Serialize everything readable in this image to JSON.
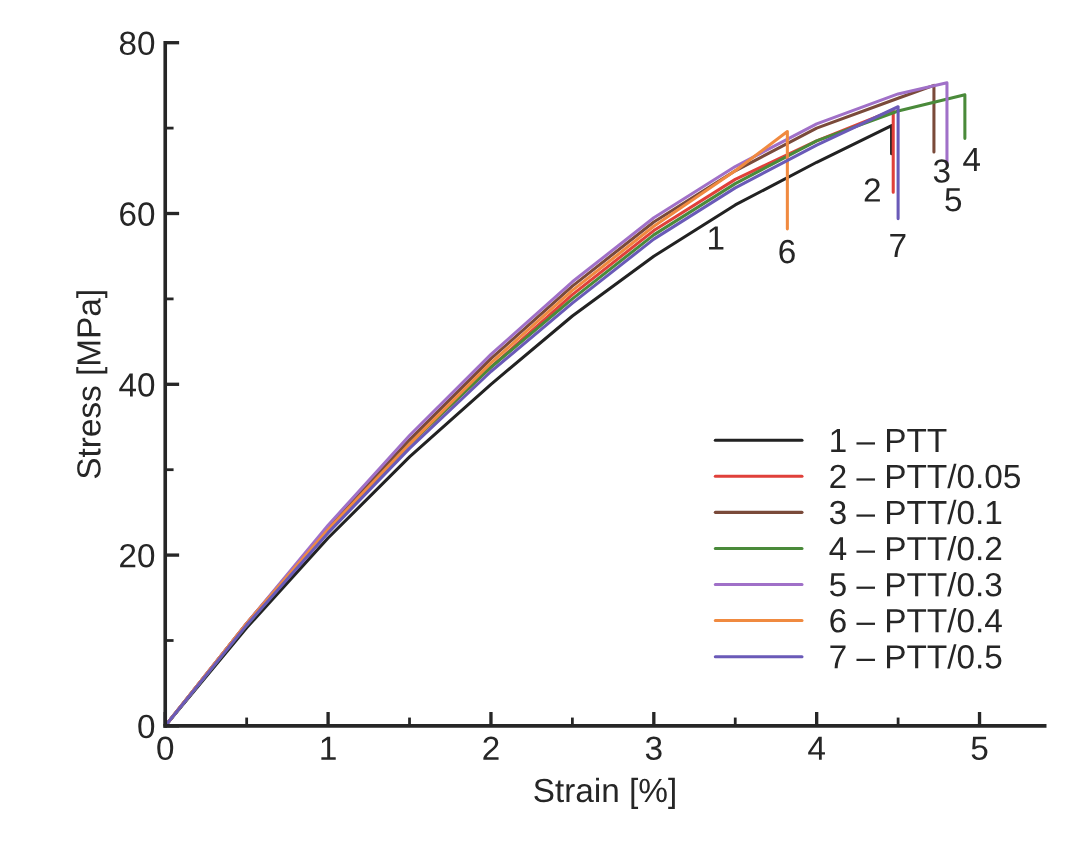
{
  "chart_data": {
    "type": "line",
    "xlabel": "Strain [%]",
    "ylabel": "Stress [MPa]",
    "xlim": [
      0,
      5.4
    ],
    "ylim": [
      0,
      80
    ],
    "xticks": [
      0,
      1,
      2,
      3,
      4,
      5
    ],
    "yticks": [
      0,
      20,
      40,
      60,
      80
    ],
    "grid": false,
    "legend": "bottom right",
    "marker": "none",
    "line_style": "solid",
    "series": [
      {
        "name": "1 – PTT",
        "color": "#222222",
        "x": [
          0,
          0.5,
          1,
          1.5,
          2,
          2.5,
          3,
          3.5,
          4,
          4.46,
          4.46
        ],
        "values": [
          0,
          11.5,
          22,
          31.5,
          40,
          48,
          55,
          61,
          66,
          70.3,
          67
        ]
      },
      {
        "name": "2 – PTT/0.05",
        "color": "#e0403a",
        "x": [
          0,
          0.5,
          1,
          1.5,
          2,
          2.5,
          3,
          3.5,
          4,
          4.47,
          4.47
        ],
        "values": [
          0,
          12,
          23,
          33,
          42,
          50.5,
          58,
          64,
          68.5,
          72.1,
          62.5
        ]
      },
      {
        "name": "3 – PTT/0.1",
        "color": "#7a4a3a",
        "x": [
          0,
          0.5,
          1,
          1.5,
          2,
          2.5,
          3,
          3.5,
          4,
          4.5,
          4.72,
          4.72
        ],
        "values": [
          0,
          12,
          23.2,
          33.5,
          43,
          51.5,
          59,
          65,
          70,
          73.5,
          75,
          67.2
        ]
      },
      {
        "name": "4 – PTT/0.2",
        "color": "#4a8a3a",
        "x": [
          0,
          0.5,
          1,
          1.5,
          2,
          2.5,
          3,
          3.5,
          4,
          4.5,
          4.91,
          4.91
        ],
        "values": [
          0,
          11.8,
          22.8,
          33,
          42,
          50,
          57.5,
          63.5,
          68.5,
          72,
          73.9,
          68.8
        ]
      },
      {
        "name": "5 – PTT/0.3",
        "color": "#a070c8",
        "x": [
          0,
          0.5,
          1,
          1.5,
          2,
          2.5,
          3,
          3.5,
          4,
          4.5,
          4.8,
          4.8
        ],
        "values": [
          0,
          12,
          23.5,
          34,
          43.5,
          52,
          59.5,
          65.5,
          70.5,
          74,
          75.3,
          65.7
        ]
      },
      {
        "name": "6 – PTT/0.4",
        "color": "#f08a40",
        "x": [
          0,
          0.5,
          1,
          1.5,
          2,
          2.5,
          3,
          3.5,
          3.82,
          3.82
        ],
        "values": [
          0,
          12,
          23,
          33,
          42.5,
          51,
          58.5,
          65,
          69.6,
          58.2
        ]
      },
      {
        "name": "7 – PTT/0.5",
        "color": "#6a5ab8",
        "x": [
          0,
          0.5,
          1,
          1.5,
          2,
          2.5,
          3,
          3.5,
          4,
          4.5,
          4.5
        ],
        "values": [
          0,
          11.8,
          22.6,
          32.5,
          41.5,
          49.5,
          57,
          63,
          68,
          72.5,
          59.4
        ]
      }
    ],
    "annotations": [
      "1",
      "6",
      "2",
      "7",
      "3",
      "5",
      "4"
    ]
  }
}
